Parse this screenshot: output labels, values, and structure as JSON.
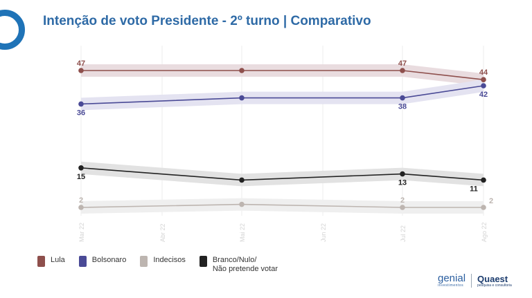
{
  "title": "Intenção de voto Presidente - 2º turno | Comparativo",
  "chart_data": {
    "type": "line",
    "title": "Intenção de voto Presidente - 2º turno | Comparativo",
    "categories": [
      "Mar 22",
      "Abr 22",
      "Mai 22",
      "Jun 22",
      "Jul 22",
      "Ago 22"
    ],
    "series": [
      {
        "name": "Lula",
        "color": "#8e4f4c",
        "band": "#e9dcdf",
        "points": [
          {
            "x": "Mar 22",
            "y": 47,
            "label": "47",
            "pos": "above"
          },
          {
            "x": "Mai 22",
            "y": 47
          },
          {
            "x": "Jul 22",
            "y": 47,
            "label": "47",
            "pos": "above"
          },
          {
            "x": "Ago 22",
            "y": 44,
            "label": "44",
            "pos": "above"
          }
        ]
      },
      {
        "name": "Bolsonaro",
        "color": "#4a4a96",
        "band": "#e4e3f1",
        "points": [
          {
            "x": "Mar 22",
            "y": 36,
            "label": "36",
            "pos": "below"
          },
          {
            "x": "Mai 22",
            "y": 38
          },
          {
            "x": "Jul 22",
            "y": 38,
            "label": "38",
            "pos": "below"
          },
          {
            "x": "Ago 22",
            "y": 42,
            "label": "42",
            "pos": "below"
          }
        ]
      },
      {
        "name": "Branco/Nulo/\nNão pretende votar",
        "color": "#222222",
        "band": "#e2e2e2",
        "points": [
          {
            "x": "Mar 22",
            "y": 15,
            "label": "15",
            "pos": "below"
          },
          {
            "x": "Mai 22",
            "y": 11
          },
          {
            "x": "Jul 22",
            "y": 13,
            "label": "13",
            "pos": "below"
          },
          {
            "x": "Ago 22",
            "y": 11,
            "label": "11",
            "pos": "below"
          }
        ]
      },
      {
        "name": "Indecisos",
        "color": "#bdb5b0",
        "band": "#efefef",
        "points": [
          {
            "x": "Mar 22",
            "y": 2,
            "label": "2",
            "pos": "above"
          },
          {
            "x": "Mai 22",
            "y": 3
          },
          {
            "x": "Jul 22",
            "y": 2,
            "label": "2",
            "pos": "above"
          },
          {
            "x": "Ago 22",
            "y": 2,
            "label": "2",
            "pos": "right"
          }
        ]
      }
    ],
    "legend": [
      {
        "name": "Lula",
        "color": "#8e4f4c"
      },
      {
        "name": "Bolsonaro",
        "color": "#4a4a96"
      },
      {
        "name": "Indecisos",
        "color": "#bdb5b0"
      },
      {
        "name": "Branco/Nulo/\nNão pretende votar",
        "color": "#222222"
      }
    ],
    "legend_position": "bottom-left",
    "grid": "vertical"
  },
  "branding": {
    "genial": "genial",
    "genial_sub": "investimentos",
    "quaest": "Quaest",
    "quaest_sub": "pesquisa e consultoria"
  }
}
